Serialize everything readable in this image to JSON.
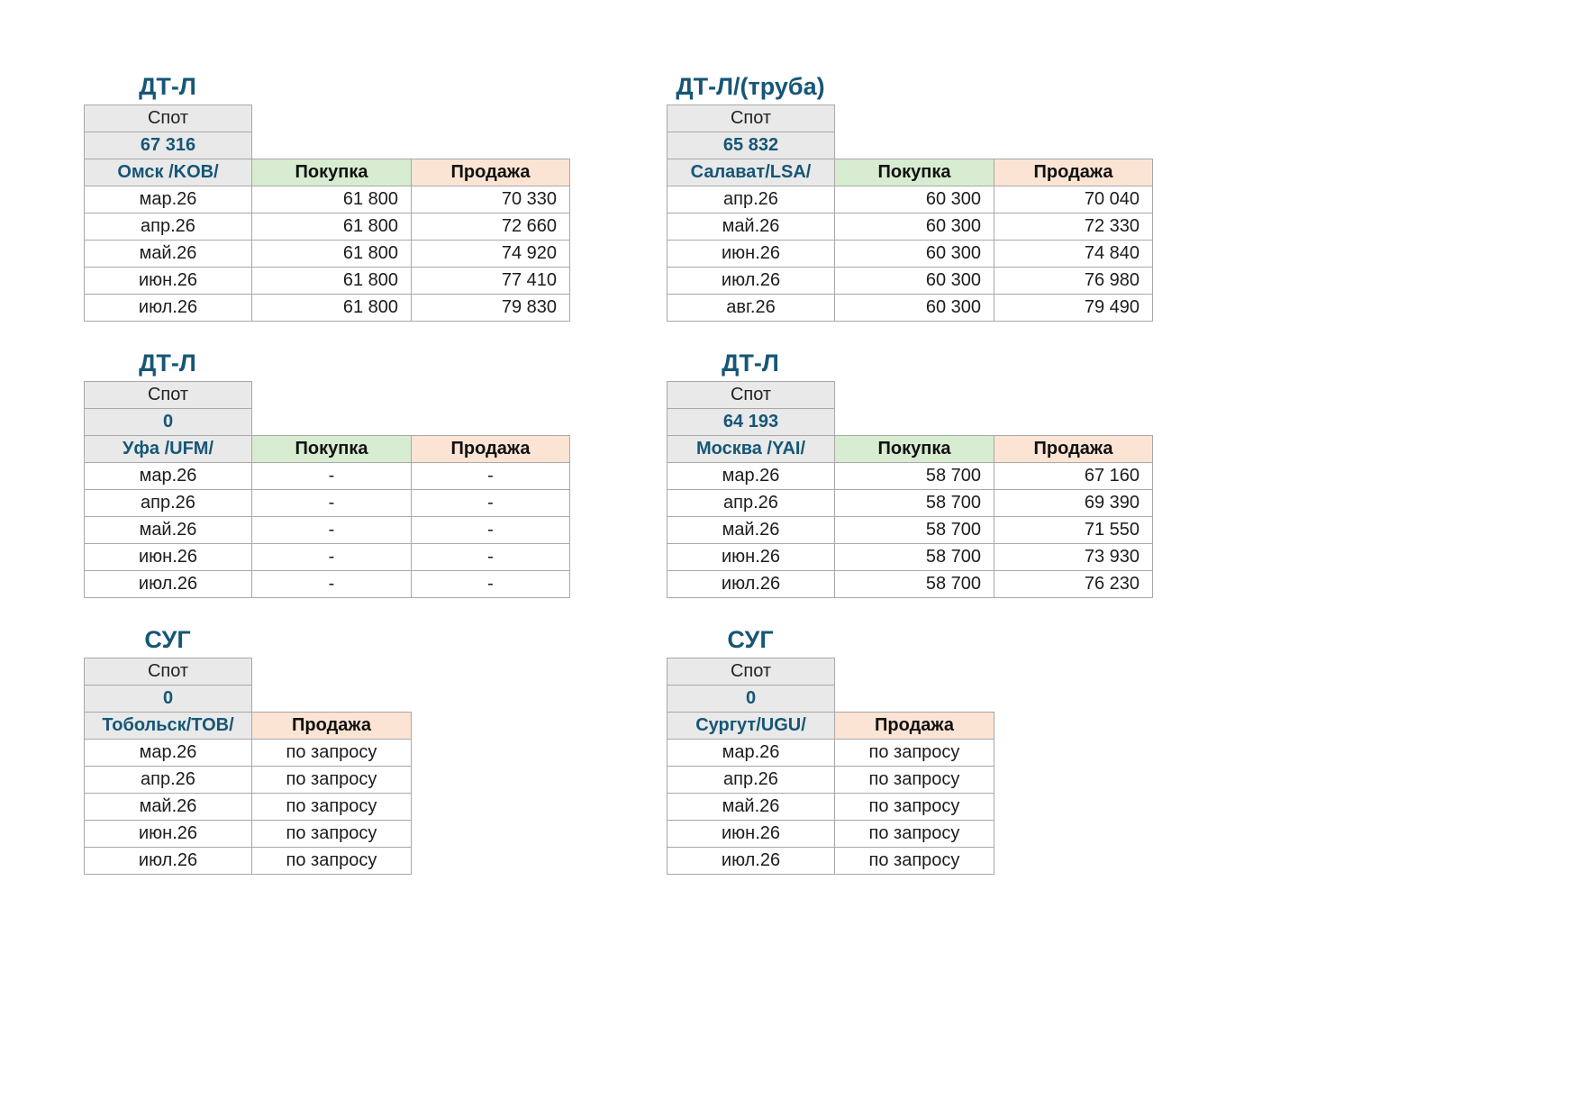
{
  "labels": {
    "spot": "Спот",
    "buy": "Покупка",
    "sell": "Продажа"
  },
  "colors": {
    "title_teal": "#165676",
    "header_gray": "#e9e9e9",
    "buy_green": "#d8ecd1",
    "sell_peach": "#fce4d4",
    "border_gray": "#a8a8a8"
  },
  "tables": [
    {
      "title": "ДТ-Л",
      "spot_value": "67 316",
      "hub": "Омск /KOB/",
      "value_align": "right",
      "rows": [
        [
          "мар.26",
          "61 800",
          "70 330"
        ],
        [
          "апр.26",
          "61 800",
          "72 660"
        ],
        [
          "май.26",
          "61 800",
          "74 920"
        ],
        [
          "июн.26",
          "61 800",
          "77 410"
        ],
        [
          "июл.26",
          "61 800",
          "79 830"
        ]
      ]
    },
    {
      "title": "ДТ-Л/(труба)",
      "spot_value": "65 832",
      "hub": "Салават/LSA/",
      "value_align": "right",
      "rows": [
        [
          "апр.26",
          "60 300",
          "70 040"
        ],
        [
          "май.26",
          "60 300",
          "72 330"
        ],
        [
          "июн.26",
          "60 300",
          "74 840"
        ],
        [
          "июл.26",
          "60 300",
          "76 980"
        ],
        [
          "авг.26",
          "60 300",
          "79 490"
        ]
      ]
    },
    {
      "title": "ДТ-Л",
      "spot_value": "0",
      "hub": "Уфа /UFM/",
      "value_align": "center",
      "rows": [
        [
          "мар.26",
          "-",
          "-"
        ],
        [
          "апр.26",
          "-",
          "-"
        ],
        [
          "май.26",
          "-",
          "-"
        ],
        [
          "июн.26",
          "-",
          "-"
        ],
        [
          "июл.26",
          "-",
          "-"
        ]
      ]
    },
    {
      "title": "ДТ-Л",
      "spot_value": "64 193",
      "hub": "Москва /YAI/",
      "value_align": "right",
      "rows": [
        [
          "мар.26",
          "58 700",
          "67 160"
        ],
        [
          "апр.26",
          "58 700",
          "69 390"
        ],
        [
          "май.26",
          "58 700",
          "71 550"
        ],
        [
          "июн.26",
          "58 700",
          "73 930"
        ],
        [
          "июл.26",
          "58 700",
          "76 230"
        ]
      ]
    },
    {
      "title": "СУГ",
      "spot_value": "0",
      "hub": "Тобольск/TOB/",
      "value_align": "center",
      "rows": [
        [
          "мар.26",
          "по запросу"
        ],
        [
          "апр.26",
          "по запросу"
        ],
        [
          "май.26",
          "по запросу"
        ],
        [
          "июн.26",
          "по запросу"
        ],
        [
          "июл.26",
          "по запросу"
        ]
      ]
    },
    {
      "title": "СУГ",
      "spot_value": "0",
      "hub": "Сургут/UGU/",
      "value_align": "center",
      "rows": [
        [
          "мар.26",
          "по запросу"
        ],
        [
          "апр.26",
          "по запросу"
        ],
        [
          "май.26",
          "по запросу"
        ],
        [
          "июн.26",
          "по запросу"
        ],
        [
          "июл.26",
          "по запросу"
        ]
      ]
    }
  ]
}
